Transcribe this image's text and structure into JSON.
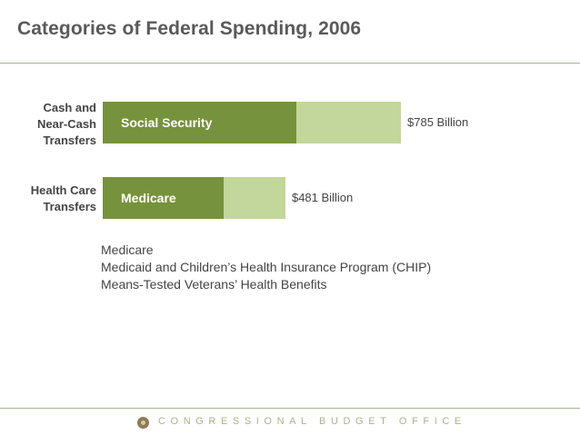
{
  "title": "Categories of Federal Spending, 2006",
  "chart_data": {
    "type": "bar",
    "orientation": "horizontal",
    "stacked": true,
    "categories": [
      {
        "label_lines": [
          "Cash and",
          "Near-Cash",
          "Transfers"
        ],
        "total": 785,
        "value_label": "$785 Billion",
        "highlight_label": "Social Security",
        "highlight_value": 510
      },
      {
        "label_lines": [
          "Health Care",
          "Transfers"
        ],
        "total": 481,
        "value_label": "$481 Billion",
        "highlight_label": "Medicare",
        "highlight_value": 318
      }
    ],
    "unit": "Billion dollars",
    "xlim": [
      0,
      785
    ]
  },
  "notes": [
    "Medicare",
    "Medicaid and Children’s Health Insurance Program (CHIP)",
    "Means-Tested Veterans’ Health Benefits"
  ],
  "footer": {
    "org": "CONGRESSIONAL BUDGET OFFICE"
  },
  "colors": {
    "dark": "#77923c",
    "light": "#c3d69b",
    "title": "#5a5a5a",
    "rule": "#a8b58a"
  }
}
